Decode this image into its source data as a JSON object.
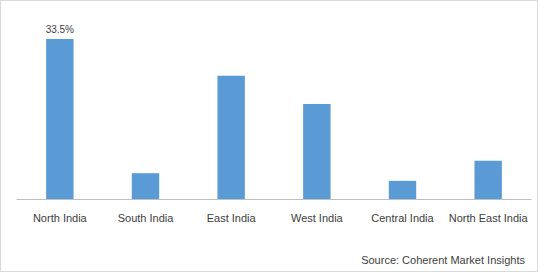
{
  "chart_data": {
    "type": "bar",
    "categories": [
      "North India",
      "South India",
      "East India",
      "West India",
      "Central India",
      "North East India"
    ],
    "values": [
      33.5,
      5.4,
      25.8,
      19.9,
      3.8,
      8.0
    ],
    "value_labels": [
      "33.5%",
      null,
      null,
      null,
      null,
      null
    ],
    "data_labels": true,
    "color": "#5b9bd5",
    "ylim": [
      0,
      36
    ],
    "yticks": [
      0,
      36
    ],
    "grid": false,
    "tick_labels": "x",
    "source": "Source: Coherent Market Insights"
  }
}
